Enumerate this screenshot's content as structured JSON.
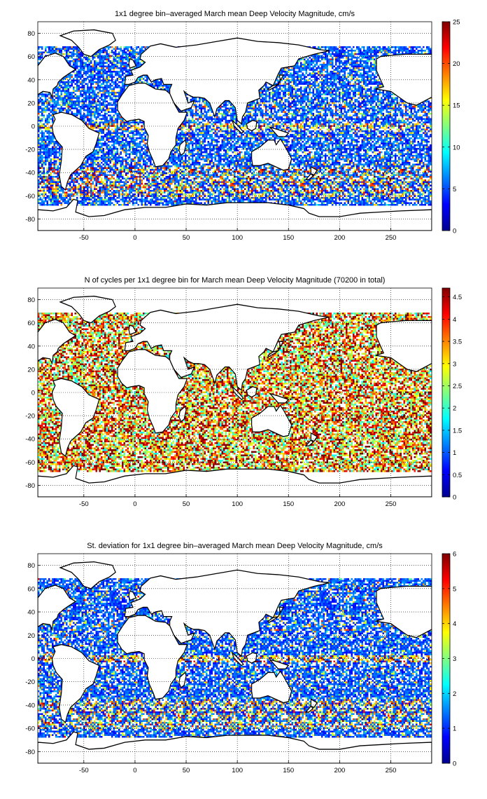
{
  "chart_data": [
    {
      "type": "heatmap",
      "title": "1x1 degree bin–averaged March mean Deep Velocity Magnitude, cm/s",
      "xlim": [
        -95,
        290
      ],
      "ylim": [
        -90,
        90
      ],
      "x_ticks": [
        -50,
        0,
        50,
        100,
        150,
        200,
        250
      ],
      "y_ticks": [
        -80,
        -60,
        -40,
        -20,
        0,
        20,
        40,
        60,
        80
      ],
      "grid": true,
      "colormap": "jet",
      "colorbar": {
        "min": 0,
        "max": 25,
        "ticks": [
          "0",
          "5",
          "10",
          "15",
          "20",
          "25"
        ],
        "position": "right"
      }
    },
    {
      "type": "heatmap",
      "title": "N of cycles per 1x1 degree bin for March mean Deep Velocity Magnitude (70200 in total)",
      "xlim": [
        -95,
        290
      ],
      "ylim": [
        -90,
        90
      ],
      "x_ticks": [
        -50,
        0,
        50,
        100,
        150,
        200,
        250
      ],
      "y_ticks": [
        -80,
        -60,
        -40,
        -20,
        0,
        20,
        40,
        60,
        80
      ],
      "grid": true,
      "colormap": "jet",
      "colorbar": {
        "min": 0,
        "max": 4.7,
        "ticks": [
          "0",
          "0.5",
          "1",
          "1.5",
          "2",
          "2.5",
          "3",
          "3.5",
          "4",
          "4.5"
        ],
        "position": "right"
      }
    },
    {
      "type": "heatmap",
      "title": "St. deviation for 1x1 degree bin–averaged March mean Deep Velocity Magnitude, cm/s",
      "xlim": [
        -95,
        290
      ],
      "ylim": [
        -90,
        90
      ],
      "x_ticks": [
        -50,
        0,
        50,
        100,
        150,
        200,
        250
      ],
      "y_ticks": [
        -80,
        -60,
        -40,
        -20,
        0,
        20,
        40,
        60,
        80
      ],
      "grid": true,
      "colormap": "jet",
      "colorbar": {
        "min": 0,
        "max": 6,
        "ticks": [
          "0",
          "1",
          "2",
          "3",
          "4",
          "5",
          "6"
        ],
        "position": "right"
      }
    }
  ]
}
